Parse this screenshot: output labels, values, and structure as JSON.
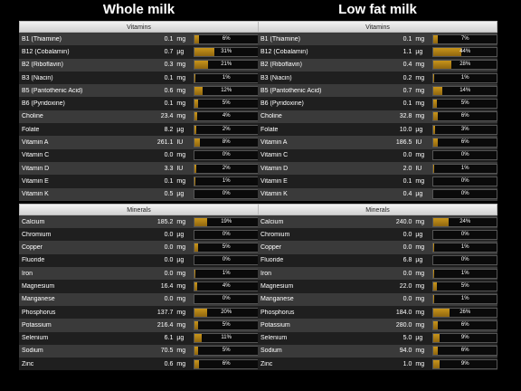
{
  "colors": {
    "bar": "#b8860b",
    "row_odd": "#3a3a3a",
    "row_even": "#1f1f1f"
  },
  "columns": [
    {
      "title": "Whole milk",
      "vitamins_header": "Vitamins",
      "vitamins": [
        {
          "name": "B1 (Thiamine)",
          "amount": "0.1",
          "unit": "mg",
          "pct_label": "6%",
          "pct": 6
        },
        {
          "name": "B12 (Cobalamin)",
          "amount": "0.7",
          "unit": "µg",
          "pct_label": "31%",
          "pct": 31
        },
        {
          "name": "B2 (Riboflavin)",
          "amount": "0.3",
          "unit": "mg",
          "pct_label": "21%",
          "pct": 21
        },
        {
          "name": "B3 (Niacin)",
          "amount": "0.1",
          "unit": "mg",
          "pct_label": "1%",
          "pct": 1
        },
        {
          "name": "B5 (Pantothenic Acid)",
          "amount": "0.6",
          "unit": "mg",
          "pct_label": "12%",
          "pct": 12
        },
        {
          "name": "B6 (Pyridoxine)",
          "amount": "0.1",
          "unit": "mg",
          "pct_label": "5%",
          "pct": 5
        },
        {
          "name": "Choline",
          "amount": "23.4",
          "unit": "mg",
          "pct_label": "4%",
          "pct": 4
        },
        {
          "name": "Folate",
          "amount": "8.2",
          "unit": "µg",
          "pct_label": "2%",
          "pct": 2
        },
        {
          "name": "Vitamin A",
          "amount": "261.1",
          "unit": "IU",
          "pct_label": "8%",
          "pct": 8
        },
        {
          "name": "Vitamin C",
          "amount": "0.0",
          "unit": "mg",
          "pct_label": "0%",
          "pct": 0
        },
        {
          "name": "Vitamin D",
          "amount": "3.3",
          "unit": "IU",
          "pct_label": "2%",
          "pct": 2
        },
        {
          "name": "Vitamin E",
          "amount": "0.1",
          "unit": "mg",
          "pct_label": "1%",
          "pct": 1
        },
        {
          "name": "Vitamin K",
          "amount": "0.5",
          "unit": "µg",
          "pct_label": "0%",
          "pct": 0
        }
      ],
      "minerals_header": "Minerals",
      "minerals": [
        {
          "name": "Calcium",
          "amount": "185.2",
          "unit": "mg",
          "pct_label": "19%",
          "pct": 19
        },
        {
          "name": "Chromium",
          "amount": "0.0",
          "unit": "µg",
          "pct_label": "0%",
          "pct": 0
        },
        {
          "name": "Copper",
          "amount": "0.0",
          "unit": "mg",
          "pct_label": "5%",
          "pct": 5
        },
        {
          "name": "Fluoride",
          "amount": "0.0",
          "unit": "µg",
          "pct_label": "0%",
          "pct": 0
        },
        {
          "name": "Iron",
          "amount": "0.0",
          "unit": "mg",
          "pct_label": "1%",
          "pct": 1
        },
        {
          "name": "Magnesium",
          "amount": "16.4",
          "unit": "mg",
          "pct_label": "4%",
          "pct": 4
        },
        {
          "name": "Manganese",
          "amount": "0.0",
          "unit": "mg",
          "pct_label": "0%",
          "pct": 0
        },
        {
          "name": "Phosphorus",
          "amount": "137.7",
          "unit": "mg",
          "pct_label": "20%",
          "pct": 20
        },
        {
          "name": "Potassium",
          "amount": "216.4",
          "unit": "mg",
          "pct_label": "5%",
          "pct": 5
        },
        {
          "name": "Selenium",
          "amount": "6.1",
          "unit": "µg",
          "pct_label": "11%",
          "pct": 11
        },
        {
          "name": "Sodium",
          "amount": "70.5",
          "unit": "mg",
          "pct_label": "5%",
          "pct": 5
        },
        {
          "name": "Zinc",
          "amount": "0.6",
          "unit": "mg",
          "pct_label": "6%",
          "pct": 6
        }
      ]
    },
    {
      "title": "Low fat milk",
      "vitamins_header": "Vitamins",
      "vitamins": [
        {
          "name": "B1 (Thiamine)",
          "amount": "0.1",
          "unit": "mg",
          "pct_label": "7%",
          "pct": 7
        },
        {
          "name": "B12 (Cobalamin)",
          "amount": "1.1",
          "unit": "µg",
          "pct_label": "44%",
          "pct": 44
        },
        {
          "name": "B2 (Riboflavin)",
          "amount": "0.4",
          "unit": "mg",
          "pct_label": "28%",
          "pct": 28
        },
        {
          "name": "B3 (Niacin)",
          "amount": "0.2",
          "unit": "mg",
          "pct_label": "1%",
          "pct": 1
        },
        {
          "name": "B5 (Pantothenic Acid)",
          "amount": "0.7",
          "unit": "mg",
          "pct_label": "14%",
          "pct": 14
        },
        {
          "name": "B6 (Pyridoxine)",
          "amount": "0.1",
          "unit": "mg",
          "pct_label": "5%",
          "pct": 5
        },
        {
          "name": "Choline",
          "amount": "32.8",
          "unit": "mg",
          "pct_label": "6%",
          "pct": 6
        },
        {
          "name": "Folate",
          "amount": "10.0",
          "unit": "µg",
          "pct_label": "3%",
          "pct": 3
        },
        {
          "name": "Vitamin A",
          "amount": "186.5",
          "unit": "IU",
          "pct_label": "6%",
          "pct": 6
        },
        {
          "name": "Vitamin C",
          "amount": "0.0",
          "unit": "mg",
          "pct_label": "0%",
          "pct": 0
        },
        {
          "name": "Vitamin D",
          "amount": "2.0",
          "unit": "IU",
          "pct_label": "1%",
          "pct": 1
        },
        {
          "name": "Vitamin E",
          "amount": "0.1",
          "unit": "mg",
          "pct_label": "0%",
          "pct": 0
        },
        {
          "name": "Vitamin K",
          "amount": "0.4",
          "unit": "µg",
          "pct_label": "0%",
          "pct": 0
        }
      ],
      "minerals_header": "Minerals",
      "minerals": [
        {
          "name": "Calcium",
          "amount": "240.0",
          "unit": "mg",
          "pct_label": "24%",
          "pct": 24
        },
        {
          "name": "Chromium",
          "amount": "0.0",
          "unit": "µg",
          "pct_label": "0%",
          "pct": 0
        },
        {
          "name": "Copper",
          "amount": "0.0",
          "unit": "mg",
          "pct_label": "1%",
          "pct": 1
        },
        {
          "name": "Fluoride",
          "amount": "6.8",
          "unit": "µg",
          "pct_label": "0%",
          "pct": 0
        },
        {
          "name": "Iron",
          "amount": "0.0",
          "unit": "mg",
          "pct_label": "1%",
          "pct": 1
        },
        {
          "name": "Magnesium",
          "amount": "22.0",
          "unit": "mg",
          "pct_label": "5%",
          "pct": 5
        },
        {
          "name": "Manganese",
          "amount": "0.0",
          "unit": "mg",
          "pct_label": "1%",
          "pct": 1
        },
        {
          "name": "Phosphorus",
          "amount": "184.0",
          "unit": "mg",
          "pct_label": "26%",
          "pct": 26
        },
        {
          "name": "Potassium",
          "amount": "280.0",
          "unit": "mg",
          "pct_label": "6%",
          "pct": 6
        },
        {
          "name": "Selenium",
          "amount": "5.0",
          "unit": "µg",
          "pct_label": "9%",
          "pct": 9
        },
        {
          "name": "Sodium",
          "amount": "94.0",
          "unit": "mg",
          "pct_label": "6%",
          "pct": 6
        },
        {
          "name": "Zinc",
          "amount": "1.0",
          "unit": "mg",
          "pct_label": "9%",
          "pct": 9
        }
      ]
    }
  ]
}
